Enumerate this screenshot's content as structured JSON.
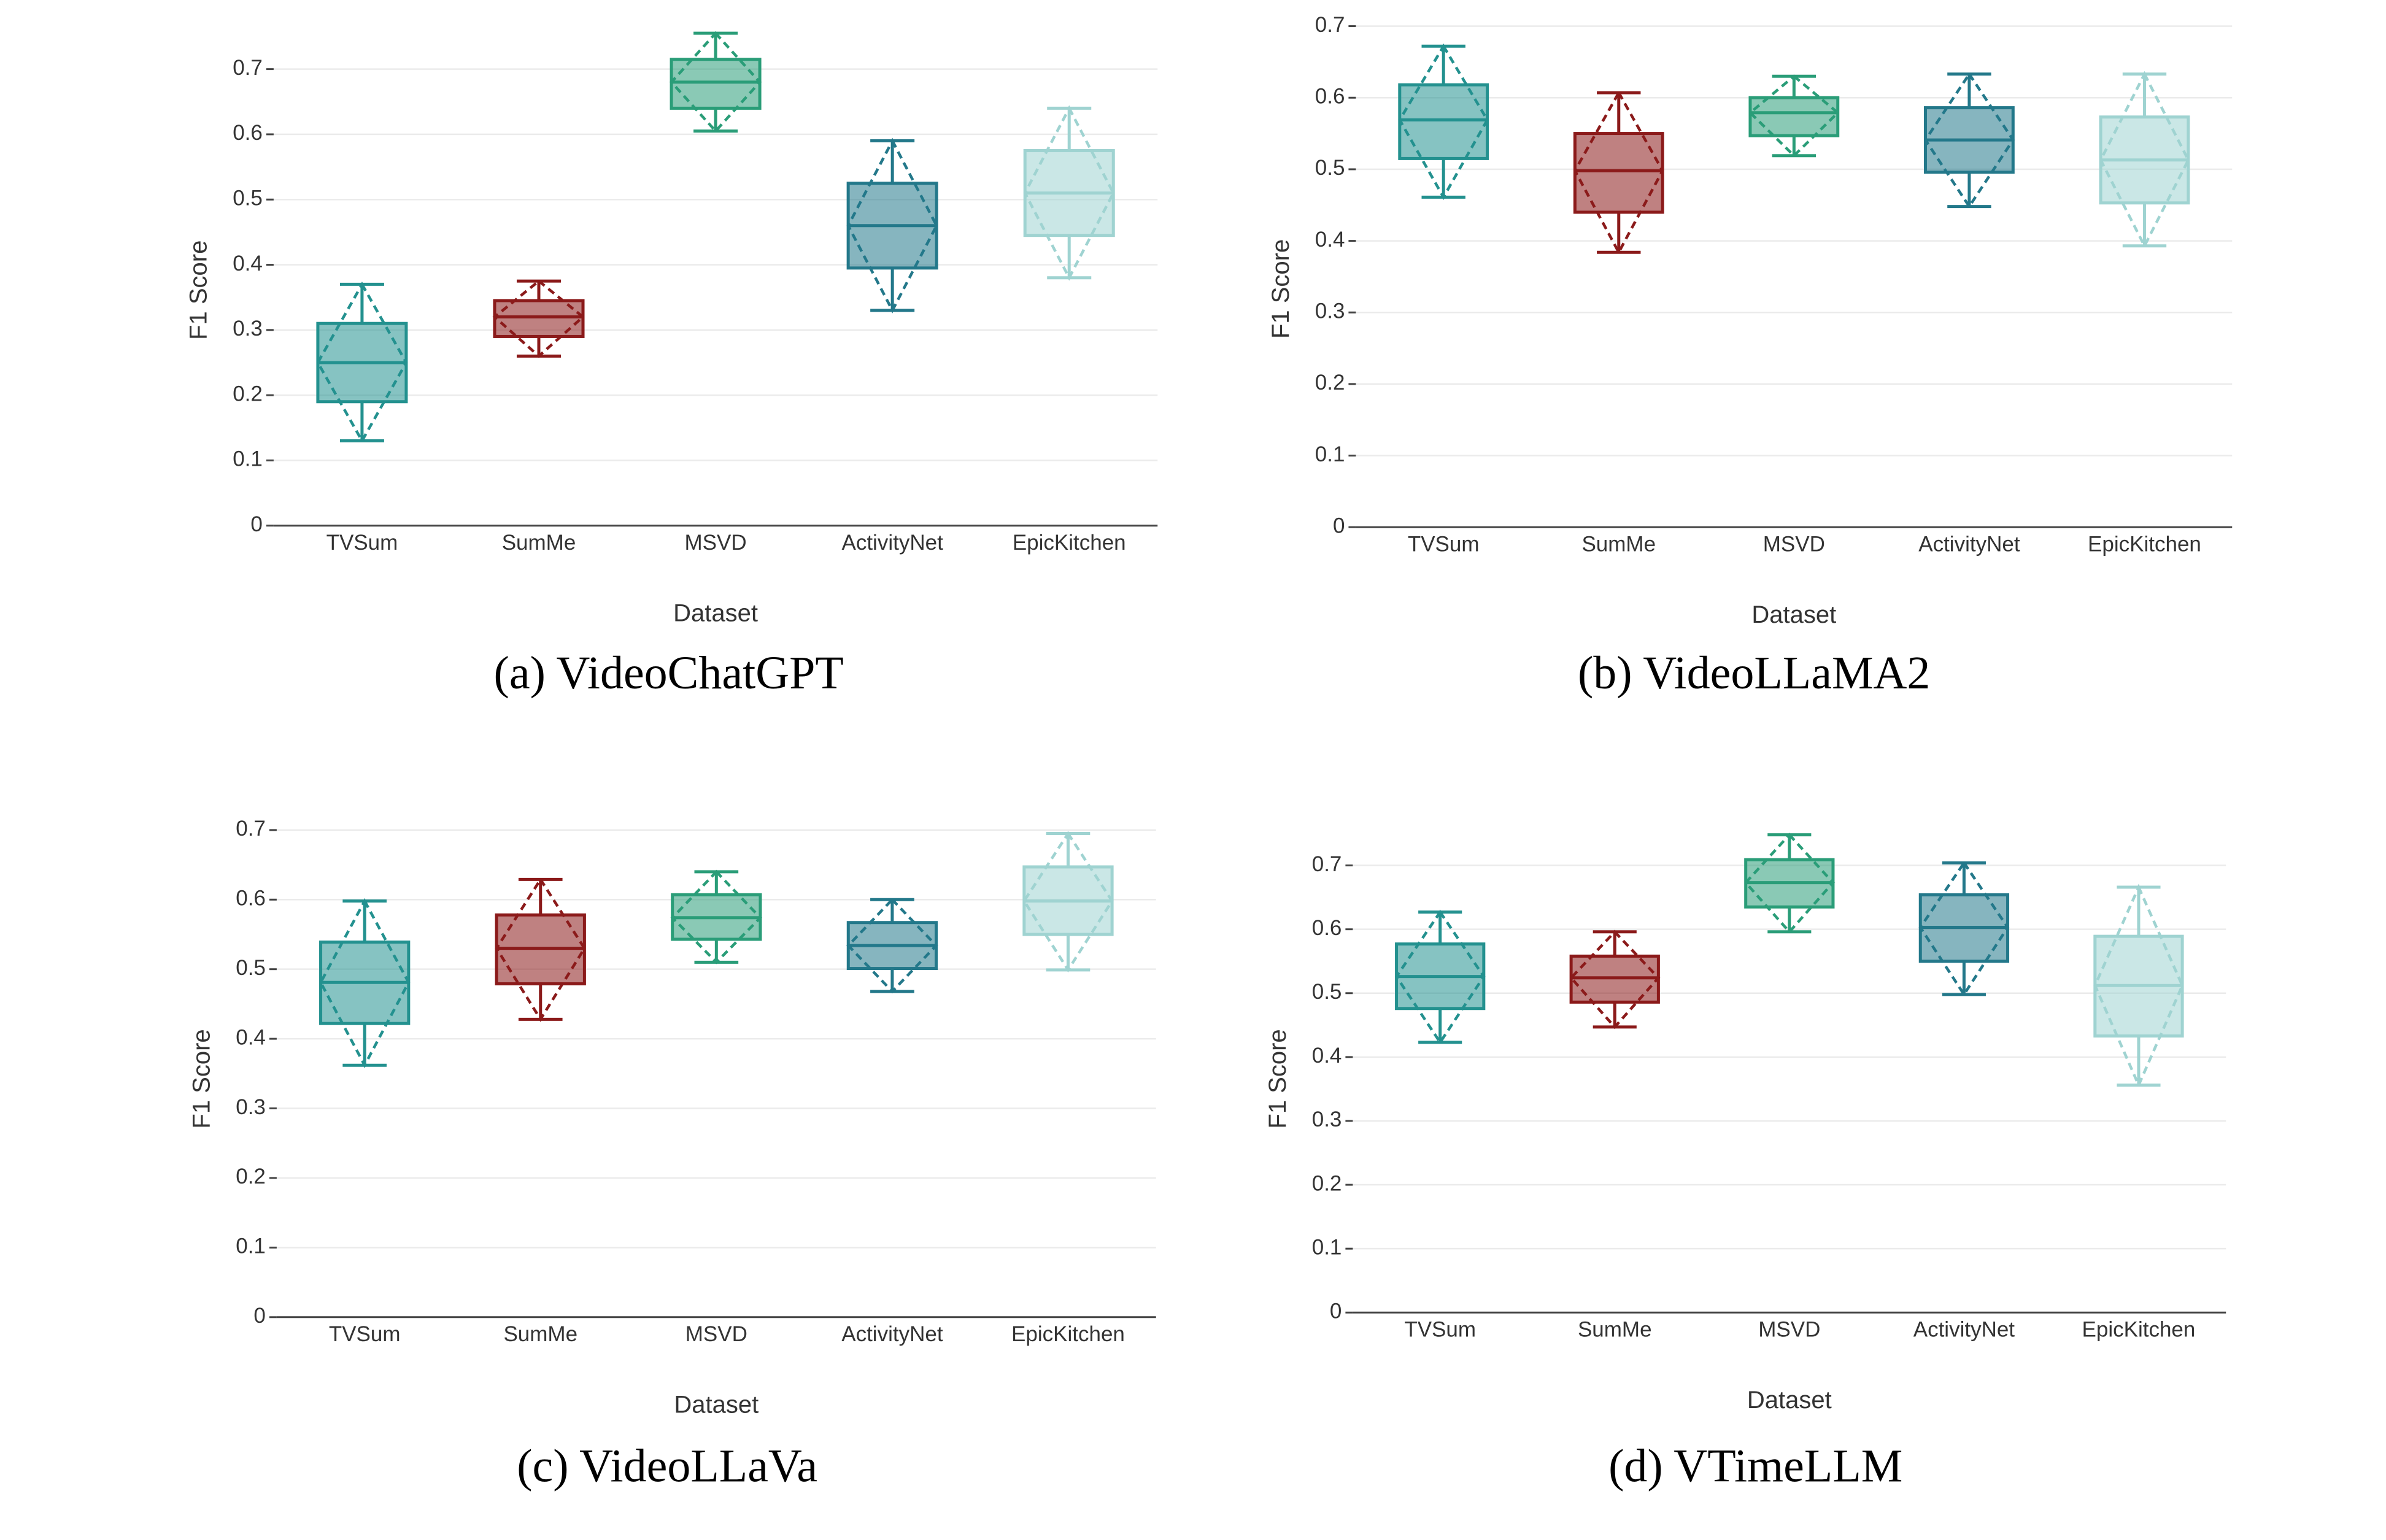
{
  "chart_data": [
    {
      "type": "box",
      "caption": "(a) VideoChatGPT",
      "xlabel": "Dataset",
      "ylabel": "F1 Score",
      "categories": [
        "TVSum",
        "SumMe",
        "MSVD",
        "ActivityNet",
        "EpicKitchen"
      ],
      "colors": [
        "#23918f",
        "#8b1a1a",
        "#2a9d78",
        "#23788a",
        "#9fd3d1"
      ],
      "boxes": [
        {
          "min": 0.13,
          "q1": 0.19,
          "median": 0.25,
          "q3": 0.31,
          "max": 0.37
        },
        {
          "min": 0.26,
          "q1": 0.29,
          "median": 0.32,
          "q3": 0.345,
          "max": 0.375
        },
        {
          "min": 0.605,
          "q1": 0.64,
          "median": 0.68,
          "q3": 0.715,
          "max": 0.755
        },
        {
          "min": 0.33,
          "q1": 0.395,
          "median": 0.46,
          "q3": 0.525,
          "max": 0.59
        },
        {
          "min": 0.38,
          "q1": 0.445,
          "median": 0.51,
          "q3": 0.575,
          "max": 0.64
        }
      ],
      "ylim": [
        0,
        0.76
      ],
      "yticks": [
        0,
        0.1,
        0.2,
        0.3,
        0.4,
        0.5,
        0.6,
        0.7
      ],
      "grid": true
    },
    {
      "type": "box",
      "caption": "(b) VideoLLaMA2",
      "xlabel": "Dataset",
      "ylabel": "F1 Score",
      "categories": [
        "TVSum",
        "SumMe",
        "MSVD",
        "ActivityNet",
        "EpicKitchen"
      ],
      "colors": [
        "#23918f",
        "#8b1a1a",
        "#2a9d78",
        "#23788a",
        "#9fd3d1"
      ],
      "boxes": [
        {
          "min": 0.461,
          "q1": 0.515,
          "median": 0.569,
          "q3": 0.618,
          "max": 0.672
        },
        {
          "min": 0.384,
          "q1": 0.44,
          "median": 0.498,
          "q3": 0.55,
          "max": 0.607
        },
        {
          "min": 0.519,
          "q1": 0.547,
          "median": 0.579,
          "q3": 0.6,
          "max": 0.63
        },
        {
          "min": 0.448,
          "q1": 0.496,
          "median": 0.541,
          "q3": 0.586,
          "max": 0.633
        },
        {
          "min": 0.393,
          "q1": 0.453,
          "median": 0.513,
          "q3": 0.573,
          "max": 0.633
        }
      ],
      "ylim": [
        0,
        0.7
      ],
      "yticks": [
        0,
        0.1,
        0.2,
        0.3,
        0.4,
        0.5,
        0.6,
        0.7
      ],
      "grid": true
    },
    {
      "type": "box",
      "caption": "(c) VideoLLaVa",
      "xlabel": "Dataset",
      "ylabel": "F1 Score",
      "categories": [
        "TVSum",
        "SumMe",
        "MSVD",
        "ActivityNet",
        "EpicKitchen"
      ],
      "colors": [
        "#23918f",
        "#8b1a1a",
        "#2a9d78",
        "#23788a",
        "#9fd3d1"
      ],
      "boxes": [
        {
          "min": 0.362,
          "q1": 0.422,
          "median": 0.481,
          "q3": 0.539,
          "max": 0.598
        },
        {
          "min": 0.428,
          "q1": 0.479,
          "median": 0.53,
          "q3": 0.578,
          "max": 0.629
        },
        {
          "min": 0.51,
          "q1": 0.543,
          "median": 0.574,
          "q3": 0.607,
          "max": 0.64
        },
        {
          "min": 0.468,
          "q1": 0.501,
          "median": 0.534,
          "q3": 0.567,
          "max": 0.6
        },
        {
          "min": 0.499,
          "q1": 0.55,
          "median": 0.598,
          "q3": 0.647,
          "max": 0.695
        }
      ],
      "ylim": [
        0,
        0.72
      ],
      "yticks": [
        0,
        0.1,
        0.2,
        0.3,
        0.4,
        0.5,
        0.6,
        0.7
      ],
      "grid": true
    },
    {
      "type": "box",
      "caption": "(d) VTimeLLM",
      "xlabel": "Dataset",
      "ylabel": "F1 Score",
      "categories": [
        "TVSum",
        "SumMe",
        "MSVD",
        "ActivityNet",
        "EpicKitchen"
      ],
      "colors": [
        "#23918f",
        "#8b1a1a",
        "#2a9d78",
        "#23788a",
        "#9fd3d1"
      ],
      "boxes": [
        {
          "min": 0.423,
          "q1": 0.476,
          "median": 0.526,
          "q3": 0.577,
          "max": 0.627
        },
        {
          "min": 0.447,
          "q1": 0.486,
          "median": 0.524,
          "q3": 0.558,
          "max": 0.596
        },
        {
          "min": 0.596,
          "q1": 0.635,
          "median": 0.673,
          "q3": 0.709,
          "max": 0.748
        },
        {
          "min": 0.498,
          "q1": 0.55,
          "median": 0.603,
          "q3": 0.654,
          "max": 0.704
        },
        {
          "min": 0.356,
          "q1": 0.433,
          "median": 0.512,
          "q3": 0.589,
          "max": 0.666
        }
      ],
      "ylim": [
        0,
        0.77
      ],
      "yticks": [
        0,
        0.1,
        0.2,
        0.3,
        0.4,
        0.5,
        0.6,
        0.7
      ],
      "grid": true
    }
  ]
}
